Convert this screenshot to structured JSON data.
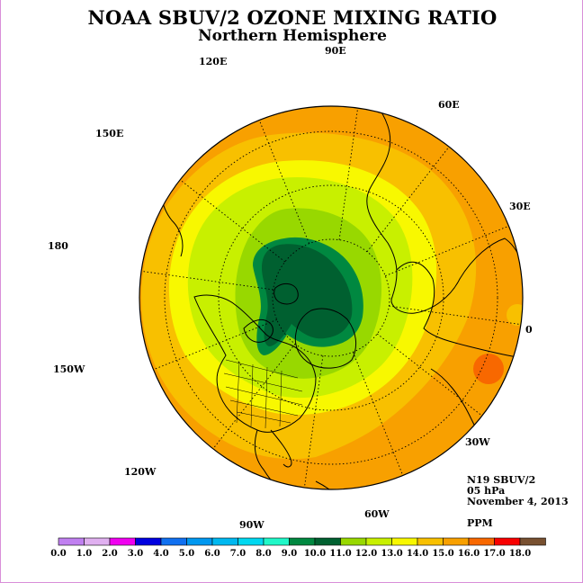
{
  "title": "NOAA SBUV/2 OZONE MIXING RATIO",
  "subtitle": "Northern Hemisphere",
  "info": {
    "satellite": "N19 SBUV/2",
    "level": "05 hPa",
    "date": "November 4, 2013",
    "units": "PPM"
  },
  "longitude_labels": [
    "90E",
    "60E",
    "30E",
    "0",
    "30W",
    "60W",
    "90W",
    "120W",
    "150W",
    "180",
    "150E",
    "120E"
  ],
  "legend": {
    "colors": [
      "#c080f0",
      "#e0b0f0",
      "#f000f0",
      "#0000e0",
      "#1070f0",
      "#0098f0",
      "#00b8f0",
      "#00d8f0",
      "#20f8c8",
      "#008840",
      "#006030",
      "#98d800",
      "#c8f000",
      "#f8f800",
      "#f8c000",
      "#f8a000",
      "#f86800",
      "#f80000",
      "#785030"
    ],
    "tick_labels": [
      "0.0",
      "1.0",
      "2.0",
      "3.0",
      "4.0",
      "5.0",
      "6.0",
      "7.0",
      "8.0",
      "9.0",
      "10.0",
      "11.0",
      "12.0",
      "13.0",
      "14.0",
      "15.0",
      "16.0",
      "17.0",
      "18.0"
    ]
  }
}
